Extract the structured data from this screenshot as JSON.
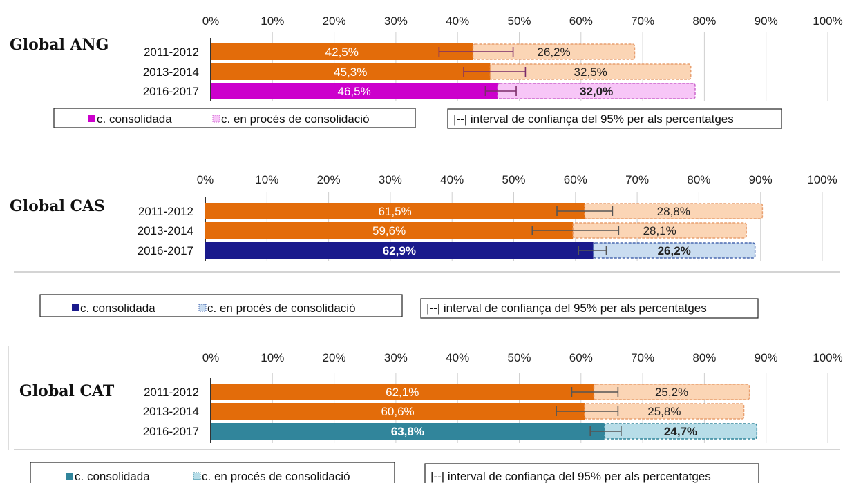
{
  "chart_data": [
    {
      "type": "bar",
      "stacked": true,
      "orientation": "horizontal",
      "title": "Global ANG",
      "x_ticks": [
        "0%",
        "10%",
        "20%",
        "30%",
        "40%",
        "50%",
        "60%",
        "70%",
        "80%",
        "90%",
        "100%"
      ],
      "xlim": [
        0,
        100
      ],
      "categories": [
        "2011-2012",
        "2013-2014",
        "2016-2017"
      ],
      "series": [
        {
          "name": "c. consolidada",
          "values": [
            42.5,
            45.3,
            46.5
          ],
          "labels": [
            "42,5%",
            "45,3%",
            "46,5%"
          ]
        },
        {
          "name": "c. en procés de consolidació",
          "values": [
            26.2,
            32.5,
            32.0
          ],
          "labels": [
            "26,2%",
            "32,5%",
            "32,0%"
          ]
        }
      ],
      "error_bars": [
        [
          37,
          49
        ],
        [
          41,
          51
        ],
        [
          44.5,
          49.5
        ]
      ],
      "colors": {
        "current_solid": "#cc00cc",
        "current_light": "#f7c6f7",
        "current_border": "#cc66cc",
        "prev_solid": "#e36c0a",
        "prev_light": "#fbd5b5",
        "prev_border": "#e8a070",
        "errbar": "#7b2c6a"
      },
      "legend": {
        "consolidated": "c. consolidada",
        "process": "c. en procés de consolidació",
        "ci": "|--|  interval de confiança del 95% per als percentatges"
      }
    },
    {
      "type": "bar",
      "stacked": true,
      "orientation": "horizontal",
      "title": "Global CAS",
      "x_ticks": [
        "0%",
        "10%",
        "20%",
        "30%",
        "40%",
        "50%",
        "60%",
        "70%",
        "80%",
        "90%",
        "100%"
      ],
      "xlim": [
        0,
        100
      ],
      "categories": [
        "2011-2012",
        "2013-2014",
        "2016-2017"
      ],
      "series": [
        {
          "name": "c. consolidada",
          "values": [
            61.5,
            59.6,
            62.9
          ],
          "labels": [
            "61,5%",
            "59,6%",
            "62,9%"
          ]
        },
        {
          "name": "c. en procés de consolidació",
          "values": [
            28.8,
            28.1,
            26.2
          ],
          "labels": [
            "28,8%",
            "28,1%",
            "26,2%"
          ]
        }
      ],
      "error_bars": [
        [
          57,
          66
        ],
        [
          53,
          67
        ],
        [
          60.5,
          65
        ]
      ],
      "colors": {
        "current_solid": "#1a1a8c",
        "current_light": "#c9dcf0",
        "current_border": "#4a6ab0",
        "prev_solid": "#e36c0a",
        "prev_light": "#fbd5b5",
        "prev_border": "#e8a070",
        "errbar": "#555555"
      },
      "legend": {
        "consolidated": "c. consolidada",
        "process": "c. en procés de consolidació",
        "ci": "|--|  interval de confiança del 95% per als percentatges"
      }
    },
    {
      "type": "bar",
      "stacked": true,
      "orientation": "horizontal",
      "title": "Global CAT",
      "x_ticks": [
        "0%",
        "10%",
        "20%",
        "30%",
        "40%",
        "50%",
        "60%",
        "70%",
        "80%",
        "90%",
        "100%"
      ],
      "xlim": [
        0,
        100
      ],
      "categories": [
        "2011-2012",
        "2013-2014",
        "2016-2017"
      ],
      "series": [
        {
          "name": "c. consolidada",
          "values": [
            62.1,
            60.6,
            63.8
          ],
          "labels": [
            "62,1%",
            "60,6%",
            "63,8%"
          ]
        },
        {
          "name": "c. en procés de consolidació",
          "values": [
            25.2,
            25.8,
            24.7
          ],
          "labels": [
            "25,2%",
            "25,8%",
            "24,7%"
          ]
        }
      ],
      "error_bars": [
        [
          58.5,
          66
        ],
        [
          56,
          66
        ],
        [
          61.5,
          66.5
        ]
      ],
      "colors": {
        "current_solid": "#31859b",
        "current_light": "#b7dde8",
        "current_border": "#31859b",
        "prev_solid": "#e36c0a",
        "prev_light": "#fbd5b5",
        "prev_border": "#e8a070",
        "errbar": "#555555"
      },
      "legend": {
        "consolidated": "c. consolidada",
        "process": "c. en procés de consolidació",
        "ci": "|--|  interval de confiança del 95% per als percentatges"
      }
    }
  ]
}
